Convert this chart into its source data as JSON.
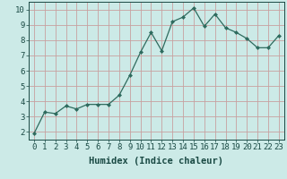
{
  "x": [
    0,
    1,
    2,
    3,
    4,
    5,
    6,
    7,
    8,
    9,
    10,
    11,
    12,
    13,
    14,
    15,
    16,
    17,
    18,
    19,
    20,
    21,
    22,
    23
  ],
  "y": [
    1.9,
    3.3,
    3.2,
    3.7,
    3.5,
    3.8,
    3.8,
    3.8,
    4.4,
    5.7,
    7.2,
    8.5,
    7.3,
    9.2,
    9.5,
    10.1,
    8.9,
    9.7,
    8.8,
    8.5,
    8.1,
    7.5,
    7.5,
    8.3
  ],
  "xlabel": "Humidex (Indice chaleur)",
  "line_color": "#2e6b5e",
  "marker_color": "#2e6b5e",
  "bg_color": "#cceae7",
  "grid_color": "#c8a0a0",
  "xlim": [
    -0.5,
    23.5
  ],
  "ylim": [
    1.5,
    10.5
  ],
  "yticks": [
    2,
    3,
    4,
    5,
    6,
    7,
    8,
    9,
    10
  ],
  "xticks": [
    0,
    1,
    2,
    3,
    4,
    5,
    6,
    7,
    8,
    9,
    10,
    11,
    12,
    13,
    14,
    15,
    16,
    17,
    18,
    19,
    20,
    21,
    22,
    23
  ],
  "tick_fontsize": 6.5,
  "xlabel_fontsize": 7.5,
  "tick_color": "#1a4a44"
}
